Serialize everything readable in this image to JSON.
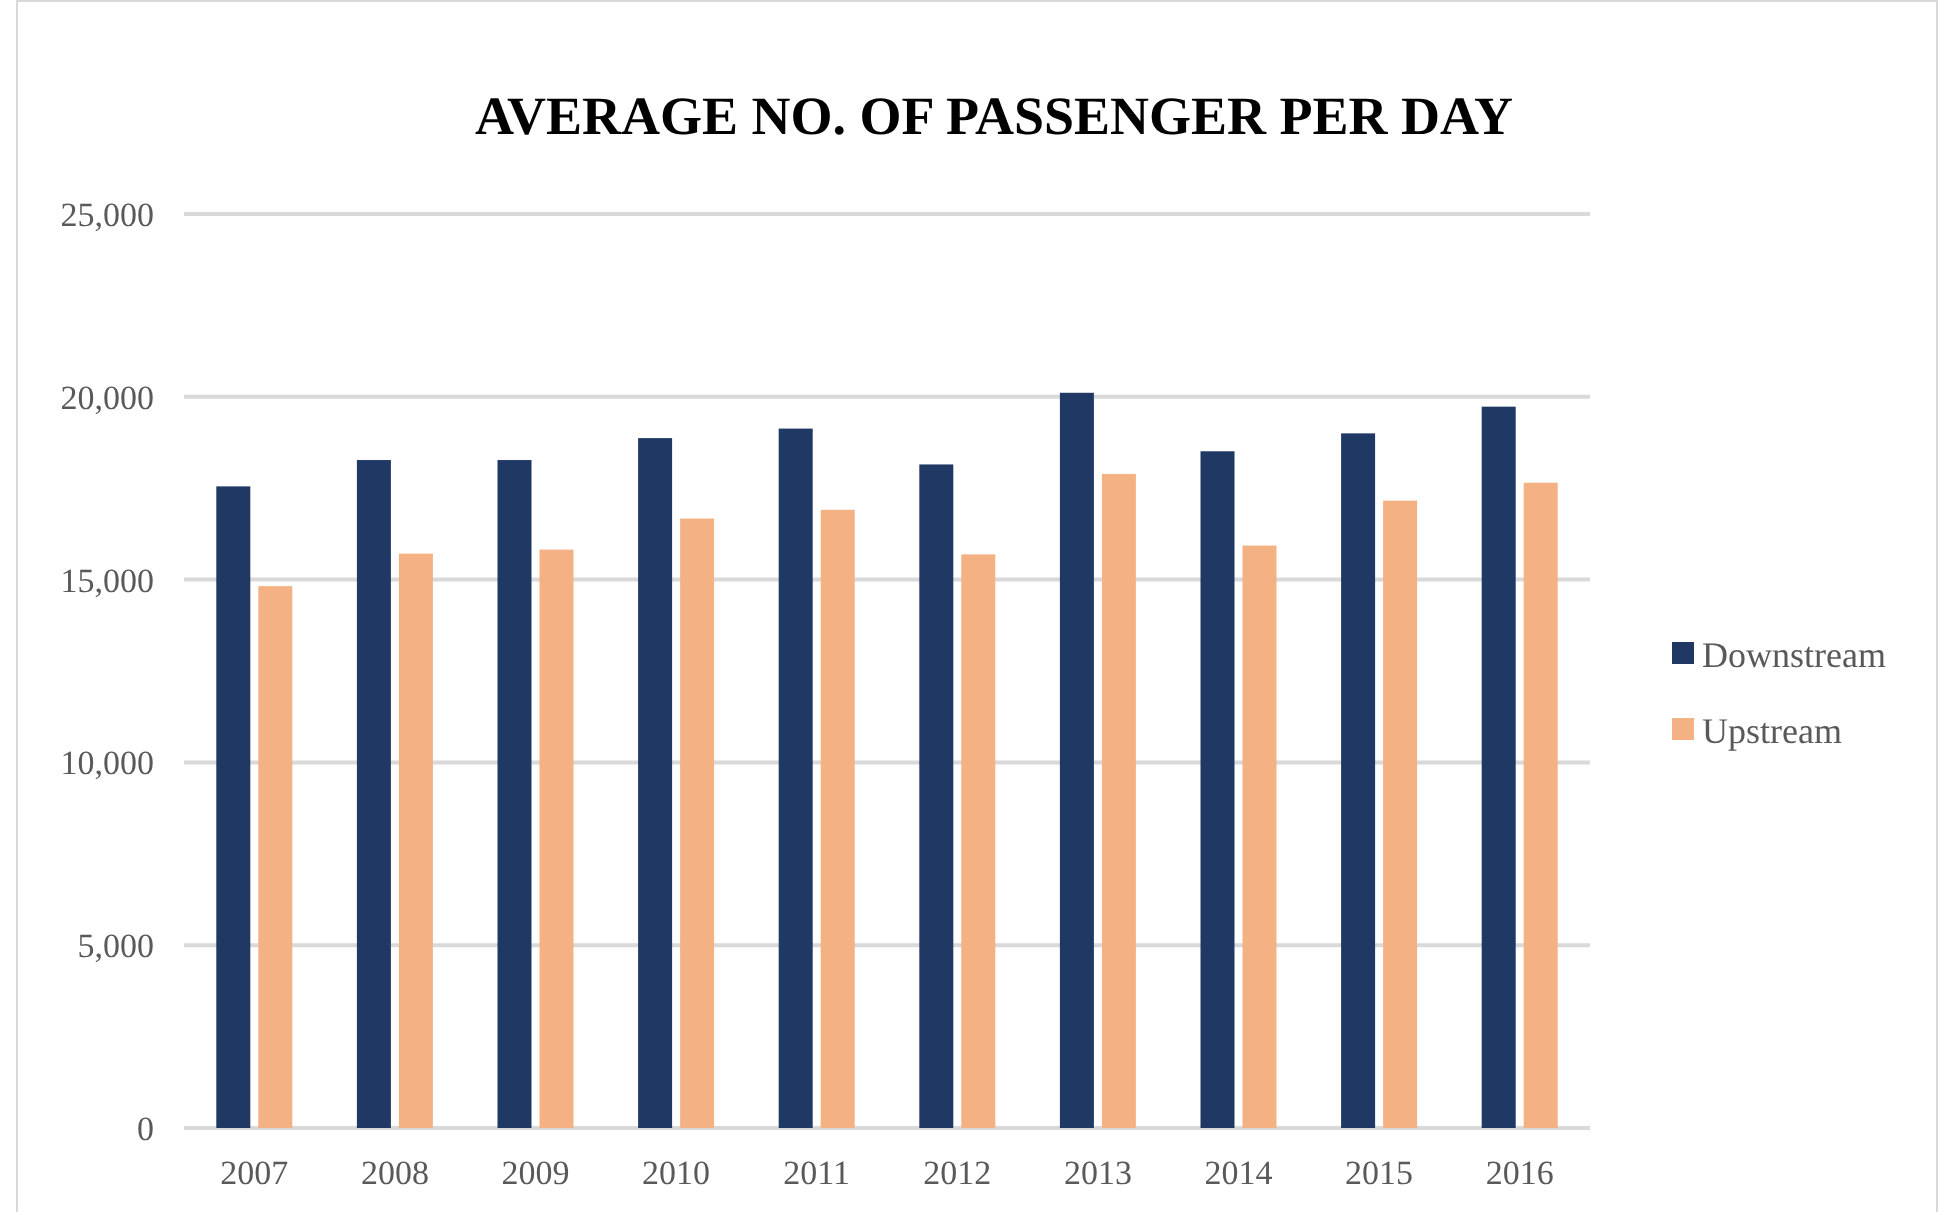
{
  "chart_data": {
    "type": "bar",
    "title": "AVERAGE NO. OF PASSENGER PER DAY",
    "categories": [
      "2007",
      "2008",
      "2009",
      "2010",
      "2011",
      "2012",
      "2013",
      "2014",
      "2015",
      "2016"
    ],
    "series": [
      {
        "name": "Downstream",
        "color": "#203864",
        "values": [
          17550,
          18270,
          18270,
          18870,
          19130,
          18150,
          20110,
          18510,
          19000,
          19730
        ]
      },
      {
        "name": "Upstream",
        "color": "#f4b183",
        "values": [
          14820,
          15710,
          15820,
          16670,
          16910,
          15690,
          17890,
          15930,
          17160,
          17650
        ]
      }
    ],
    "ylim": [
      0,
      25000
    ],
    "yticks": [
      {
        "value": 0,
        "label": "0"
      },
      {
        "value": 5000,
        "label": "5,000"
      },
      {
        "value": 10000,
        "label": "10,000"
      },
      {
        "value": 15000,
        "label": "15,000"
      },
      {
        "value": 20000,
        "label": "20,000"
      },
      {
        "value": 25000,
        "label": "25,000"
      }
    ],
    "grid": "y",
    "legend": "right"
  }
}
